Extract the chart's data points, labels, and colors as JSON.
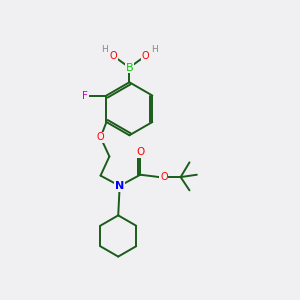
{
  "background_color": "#f0f0f2",
  "atom_colors": {
    "B": "#00cc00",
    "O": "#ff0000",
    "N": "#0000ff",
    "F": "#cc00cc",
    "H": "#888888",
    "C": "#1a5c1a"
  },
  "bond_color": "#1a5c1a",
  "figsize": [
    3.0,
    3.0
  ],
  "dpi": 100
}
